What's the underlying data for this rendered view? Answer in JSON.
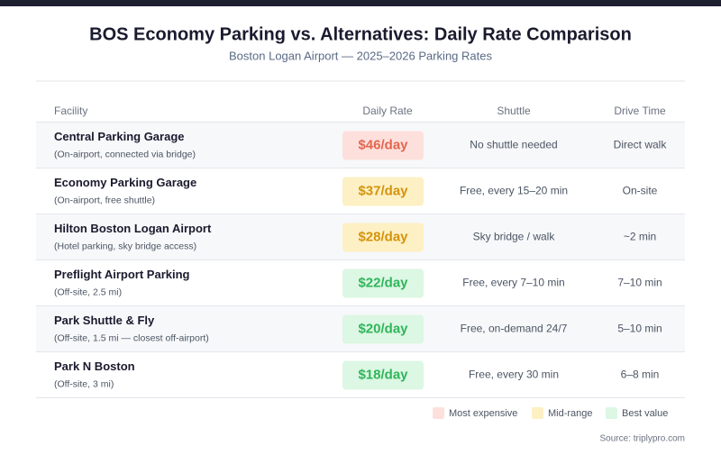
{
  "header": {
    "title": "BOS Economy Parking vs. Alternatives: Daily Rate Comparison",
    "subtitle": "Boston Logan Airport — 2025–2026 Parking Rates"
  },
  "table": {
    "columns": [
      "Facility",
      "Daily Rate",
      "Shuttle",
      "Drive Time"
    ],
    "rows": [
      {
        "name": "Central Parking Garage",
        "note": "(On-airport, connected via bridge)",
        "rate": "$46/day",
        "rate_bg": "#fde0dc",
        "rate_color": "#e5654f",
        "shuttle": "No shuttle needed",
        "drive": "Direct walk"
      },
      {
        "name": "Economy Parking Garage",
        "note": "(On-airport, free shuttle)",
        "rate": "$37/day",
        "rate_bg": "#fdf0c4",
        "rate_color": "#d4930a",
        "shuttle": "Free, every 15–20 min",
        "drive": "On-site"
      },
      {
        "name": "Hilton Boston Logan Airport",
        "note": "(Hotel parking, sky bridge access)",
        "rate": "$28/day",
        "rate_bg": "#fdf0c4",
        "rate_color": "#d4930a",
        "shuttle": "Sky bridge / walk",
        "drive": "~2 min"
      },
      {
        "name": "Preflight Airport Parking",
        "note": "(Off-site, 2.5 mi)",
        "rate": "$22/day",
        "rate_bg": "#dcf7e3",
        "rate_color": "#2fb55a",
        "shuttle": "Free, every 7–10 min",
        "drive": "7–10 min"
      },
      {
        "name": "Park Shuttle & Fly",
        "note": "(Off-site, 1.5 mi — closest off-airport)",
        "rate": "$20/day",
        "rate_bg": "#dcf7e3",
        "rate_color": "#2fb55a",
        "shuttle": "Free, on-demand 24/7",
        "drive": "5–10 min"
      },
      {
        "name": "Park N Boston",
        "note": "(Off-site, 3 mi)",
        "rate": "$18/day",
        "rate_bg": "#dcf7e3",
        "rate_color": "#2fb55a",
        "shuttle": "Free, every 30 min",
        "drive": "6–8 min"
      }
    ]
  },
  "legend": [
    {
      "label": "Most expensive",
      "color": "#fde0dc"
    },
    {
      "label": "Mid-range",
      "color": "#fdf0c4"
    },
    {
      "label": "Best value",
      "color": "#dcf7e3"
    }
  ],
  "source": "Source: triplypro.com"
}
